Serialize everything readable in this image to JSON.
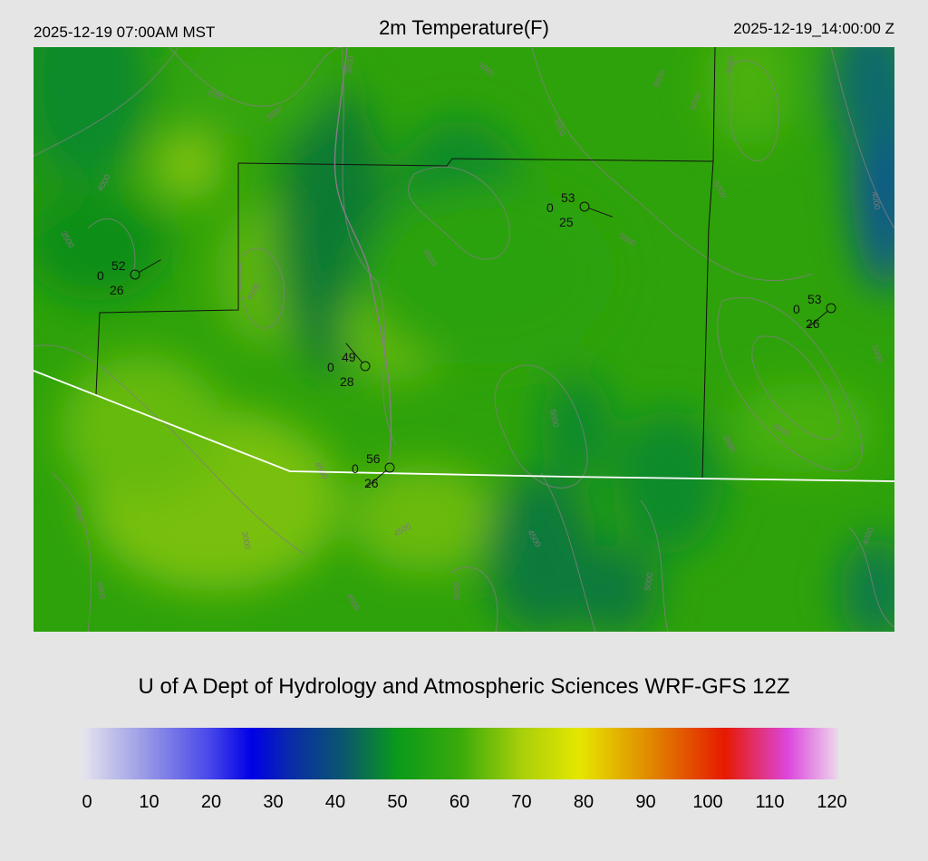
{
  "header": {
    "local_time": "2025-12-19 07:00AM MST",
    "title": "2m Temperature(F)",
    "utc_time": "2025-12-19_14:00:00 Z"
  },
  "credit": "U of A Dept of Hydrology and Atmospheric Sciences WRF-GFS 12Z",
  "colorbar": {
    "ticks": [
      "0",
      "10",
      "20",
      "30",
      "40",
      "50",
      "60",
      "70",
      "80",
      "90",
      "100",
      "110",
      "120"
    ],
    "range": [
      0,
      120
    ],
    "stops": [
      {
        "v": 0,
        "c": "#e6e6ee"
      },
      {
        "v": 10,
        "c": "#9a9ae6"
      },
      {
        "v": 20,
        "c": "#4a4aea"
      },
      {
        "v": 27,
        "c": "#0000e6"
      },
      {
        "v": 33,
        "c": "#0a2aaa"
      },
      {
        "v": 42,
        "c": "#0a5a6a"
      },
      {
        "v": 50,
        "c": "#0a9a1a"
      },
      {
        "v": 60,
        "c": "#3aaa0a"
      },
      {
        "v": 70,
        "c": "#aad00a"
      },
      {
        "v": 79,
        "c": "#e6e600"
      },
      {
        "v": 90,
        "c": "#e08a00"
      },
      {
        "v": 102,
        "c": "#e61a00"
      },
      {
        "v": 112,
        "c": "#dc46dc"
      },
      {
        "v": 120,
        "c": "#ecd8ec"
      }
    ]
  },
  "stations": [
    {
      "temp": "52",
      "mid": "0",
      "dew": "26"
    },
    {
      "temp": "53",
      "mid": "0",
      "dew": "25"
    },
    {
      "temp": "53",
      "mid": "0",
      "dew": "26"
    },
    {
      "temp": "49",
      "mid": "0",
      "dew": "28"
    },
    {
      "temp": "56",
      "mid": "0",
      "dew": "26"
    }
  ],
  "contour_labels": [
    "4000",
    "4000",
    "3500",
    "4000",
    "5000",
    "5000",
    "3500",
    "4500",
    "5000",
    "4500",
    "5000",
    "4000",
    "4500",
    "5000",
    "3500",
    "5000",
    "6000",
    "4500",
    "3500",
    "4500",
    "4000",
    "3000",
    "4500",
    "5000",
    "5000",
    "4500",
    "5000",
    "4000",
    "3500"
  ]
}
